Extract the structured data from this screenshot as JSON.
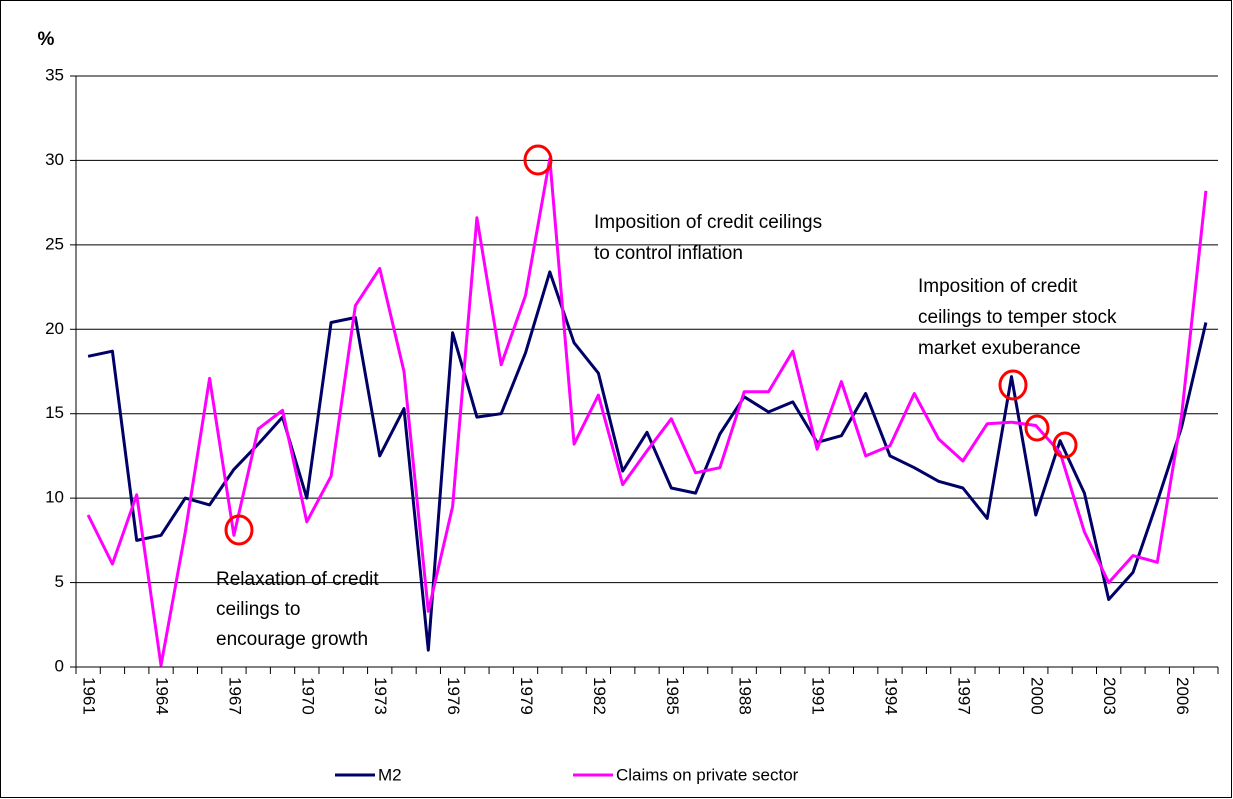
{
  "chart_data": {
    "type": "line",
    "y_label": "%",
    "categories": [
      "1961",
      null,
      null,
      "1964",
      null,
      null,
      "1967",
      null,
      null,
      "1970",
      null,
      null,
      "1973",
      null,
      null,
      "1976",
      null,
      null,
      "1979",
      null,
      null,
      "1982",
      null,
      null,
      "1985",
      null,
      null,
      "1988",
      null,
      null,
      "1991",
      null,
      null,
      "1994",
      null,
      null,
      "1997",
      null,
      null,
      "2000",
      null,
      null,
      "2003",
      null,
      null,
      "2006",
      null
    ],
    "series": [
      {
        "name": "M2",
        "color": "#000066",
        "values": [
          18.4,
          18.7,
          7.5,
          7.8,
          10.0,
          9.6,
          11.7,
          13.2,
          14.8,
          10.0,
          20.4,
          20.7,
          12.5,
          15.3,
          1.0,
          19.8,
          14.8,
          15.0,
          18.6,
          23.4,
          19.2,
          17.4,
          11.6,
          13.9,
          10.6,
          10.3,
          13.8,
          16.0,
          15.1,
          15.7,
          13.3,
          13.7,
          16.2,
          12.5,
          11.8,
          11.0,
          10.6,
          8.8,
          17.2,
          9.0,
          13.4,
          10.3,
          4.0,
          5.6,
          9.8,
          14.2,
          20.4
        ]
      },
      {
        "name": "Claims on private sector",
        "color": "#ff00ff",
        "values": [
          9.0,
          6.1,
          10.2,
          0.1,
          8.0,
          17.1,
          7.8,
          14.1,
          15.2,
          8.6,
          11.3,
          21.4,
          23.6,
          17.5,
          3.3,
          9.5,
          26.6,
          17.9,
          22.0,
          30.1,
          13.2,
          16.1,
          10.8,
          12.8,
          14.7,
          11.5,
          11.8,
          16.3,
          16.3,
          18.7,
          12.9,
          16.9,
          12.5,
          13.1,
          16.2,
          13.5,
          12.2,
          14.4,
          14.5,
          14.3,
          12.7,
          8.0,
          5.0,
          6.6,
          6.2,
          14.9,
          28.2
        ]
      }
    ],
    "ylim": [
      0,
      35
    ],
    "yticks": [
      0,
      5,
      10,
      15,
      20,
      25,
      30,
      35
    ],
    "grid": true,
    "annotations": [
      {
        "lines": [
          "Relaxation of credit",
          "ceilings to",
          "encourage growth"
        ]
      },
      {
        "lines": [
          "Imposition of credit ceilings",
          "to control inflation"
        ]
      },
      {
        "lines": [
          "Imposition of credit",
          "ceilings to temper stock",
          "market exuberance"
        ]
      }
    ]
  }
}
